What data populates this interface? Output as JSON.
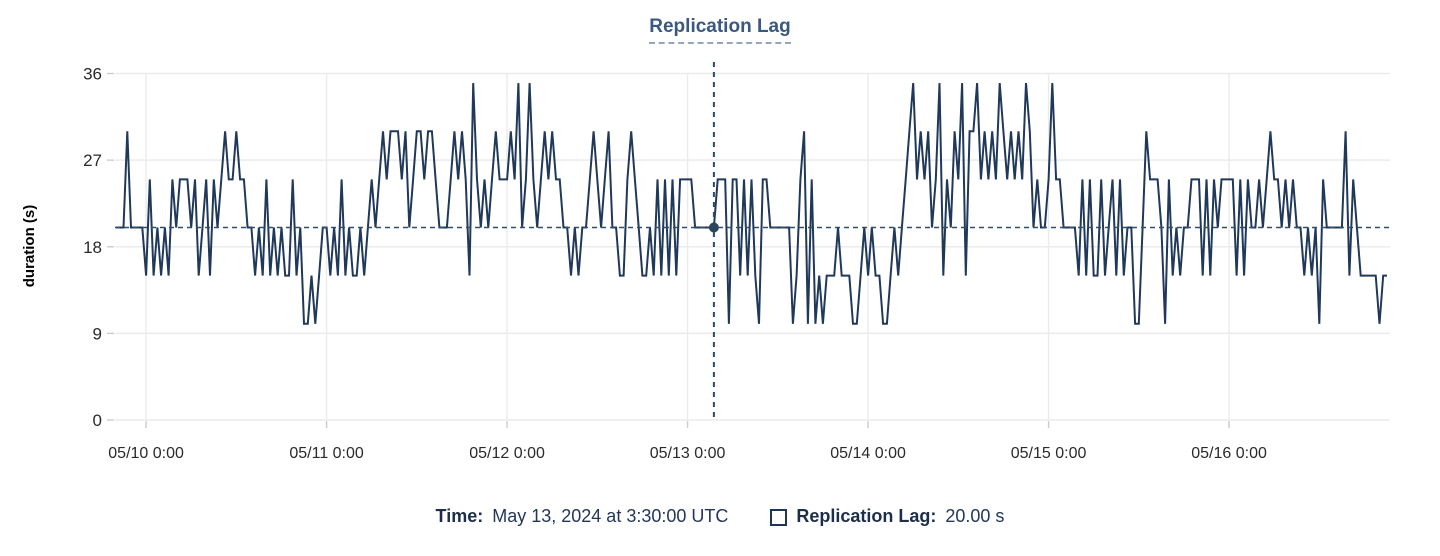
{
  "chart_data": {
    "type": "line",
    "title": "Replication Lag",
    "ylabel": "duration (s)",
    "ylim": [
      0,
      36
    ],
    "y_ticks": [
      0,
      9,
      18,
      27,
      36
    ],
    "x_tick_labels": [
      "05/10 0:00",
      "05/11 0:00",
      "05/12 0:00",
      "05/13 0:00",
      "05/14 0:00",
      "05/15 0:00",
      "05/16 0:00"
    ],
    "grid": true,
    "legend_position": "bottom",
    "interval_minutes": 30,
    "first_tick_index": 8,
    "ticks_every": 48,
    "series": [
      {
        "name": "Replication Lag",
        "values": [
          20,
          20,
          20,
          30,
          20,
          20,
          20,
          20,
          15,
          25,
          15,
          20,
          15,
          20,
          15,
          25,
          20,
          25,
          25,
          25,
          20,
          25,
          15,
          20,
          25,
          15,
          25,
          20,
          25,
          30,
          25,
          25,
          30,
          25,
          25,
          20,
          20,
          15,
          20,
          15,
          25,
          15,
          20,
          15,
          20,
          15,
          15,
          25,
          15,
          20,
          10,
          10,
          15,
          10,
          15,
          20,
          20,
          15,
          20,
          15,
          25,
          15,
          20,
          15,
          15,
          20,
          15,
          20,
          25,
          20,
          25,
          30,
          25,
          30,
          30,
          30,
          25,
          30,
          20,
          25,
          30,
          30,
          25,
          30,
          30,
          25,
          20,
          20,
          20,
          25,
          30,
          25,
          30,
          25,
          15,
          35,
          25,
          20,
          25,
          20,
          25,
          30,
          25,
          25,
          25,
          30,
          25,
          35,
          20,
          25,
          35,
          25,
          20,
          25,
          30,
          25,
          30,
          25,
          25,
          20,
          20,
          15,
          20,
          15,
          20,
          20,
          25,
          30,
          25,
          20,
          25,
          30,
          20,
          20,
          15,
          15,
          25,
          30,
          25,
          20,
          15,
          15,
          20,
          15,
          25,
          15,
          25,
          15,
          25,
          15,
          25,
          25,
          25,
          25,
          20,
          20,
          20,
          20,
          20,
          20,
          25,
          25,
          25,
          10,
          25,
          25,
          15,
          25,
          15,
          25,
          15,
          10,
          25,
          25,
          20,
          20,
          20,
          20,
          20,
          20,
          10,
          15,
          25,
          30,
          10,
          25,
          10,
          15,
          10,
          15,
          15,
          15,
          20,
          15,
          15,
          15,
          10,
          10,
          15,
          20,
          15,
          20,
          15,
          15,
          10,
          10,
          15,
          20,
          15,
          20,
          25,
          30,
          35,
          25,
          30,
          25,
          30,
          20,
          25,
          35,
          15,
          25,
          20,
          30,
          25,
          35,
          15,
          30,
          30,
          35,
          25,
          30,
          25,
          30,
          25,
          35,
          30,
          25,
          30,
          25,
          30,
          25,
          35,
          30,
          20,
          25,
          20,
          20,
          25,
          35,
          25,
          25,
          20,
          20,
          20,
          20,
          15,
          25,
          15,
          25,
          15,
          15,
          25,
          15,
          20,
          25,
          15,
          25,
          15,
          20,
          20,
          10,
          10,
          20,
          30,
          25,
          25,
          25,
          20,
          10,
          25,
          15,
          20,
          15,
          20,
          20,
          25,
          25,
          25,
          15,
          25,
          15,
          25,
          20,
          25,
          25,
          25,
          25,
          15,
          25,
          15,
          25,
          20,
          20,
          25,
          20,
          25,
          30,
          25,
          25,
          20,
          25,
          20,
          25,
          20,
          20,
          15,
          20,
          15,
          20,
          10,
          25,
          20,
          20,
          20,
          20,
          20,
          30,
          15,
          25,
          20,
          15,
          15,
          15,
          15,
          15,
          10,
          15,
          15
        ]
      }
    ],
    "crosshair": {
      "index": 159,
      "value": 20,
      "reference_value": 20
    }
  },
  "tooltip": {
    "time_label": "Time:",
    "time_value": "May 13, 2024 at 3:30:00 UTC",
    "series_label": "Replication Lag:",
    "series_value": "20.00 s"
  },
  "colors": {
    "line": "#20395a",
    "reference_dash": "#2f506c",
    "crosshair_dash": "#2b4a68",
    "marker": "#2c455f",
    "grid": "#ebebeb",
    "tick": "#cccccc",
    "axis_text": "#2a2a2a",
    "title": "#3a5880"
  }
}
